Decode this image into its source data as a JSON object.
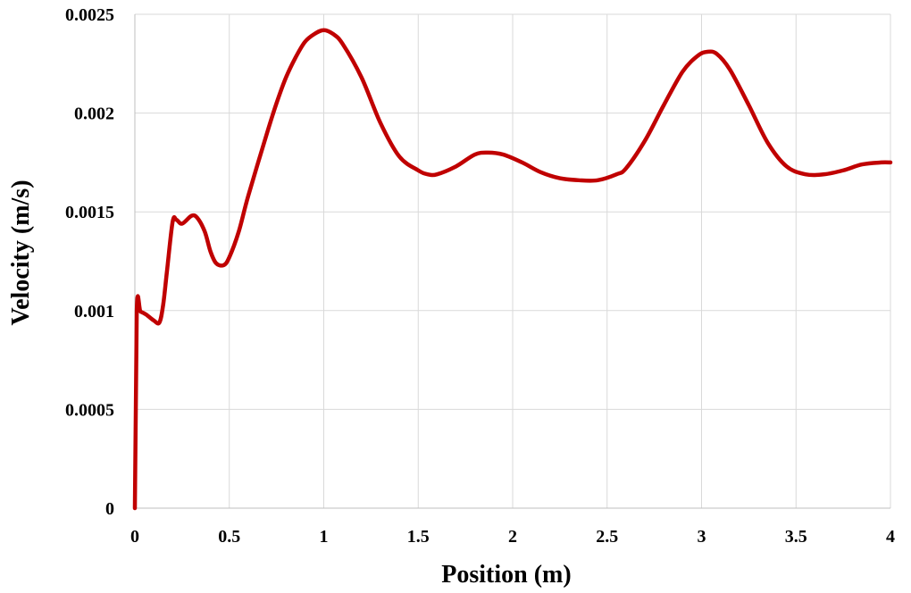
{
  "chart_data": {
    "type": "line",
    "xlabel": "Position (m)",
    "ylabel": "Velocity (m/s)",
    "xlim": [
      0,
      4
    ],
    "ylim": [
      0,
      0.0025
    ],
    "x_ticks": [
      "0",
      "0.5",
      "1",
      "1.5",
      "2",
      "2.5",
      "3",
      "3.5",
      "4"
    ],
    "y_ticks": [
      "0",
      "0.0005",
      "0.001",
      "0.0015",
      "0.002",
      "0.0025"
    ],
    "grid": true,
    "legend": "none",
    "series": [
      {
        "color": "#c00000",
        "points": [
          [
            0.0,
            0.0
          ],
          [
            0.01,
            0.001
          ],
          [
            0.03,
            0.000995
          ],
          [
            0.06,
            0.00098
          ],
          [
            0.1,
            0.00095
          ],
          [
            0.13,
            0.00094
          ],
          [
            0.15,
            0.00103
          ],
          [
            0.17,
            0.0012
          ],
          [
            0.2,
            0.00145
          ],
          [
            0.22,
            0.00146
          ],
          [
            0.25,
            0.00144
          ],
          [
            0.3,
            0.00148
          ],
          [
            0.33,
            0.00147
          ],
          [
            0.37,
            0.0014
          ],
          [
            0.4,
            0.0013
          ],
          [
            0.43,
            0.00124
          ],
          [
            0.47,
            0.00123
          ],
          [
            0.5,
            0.00127
          ],
          [
            0.55,
            0.0014
          ],
          [
            0.6,
            0.00158
          ],
          [
            0.7,
            0.0019
          ],
          [
            0.75,
            0.00205
          ],
          [
            0.8,
            0.00218
          ],
          [
            0.85,
            0.00228
          ],
          [
            0.9,
            0.00236
          ],
          [
            0.95,
            0.0024
          ],
          [
            1.0,
            0.00242
          ],
          [
            1.05,
            0.0024
          ],
          [
            1.1,
            0.00235
          ],
          [
            1.2,
            0.00218
          ],
          [
            1.3,
            0.00195
          ],
          [
            1.4,
            0.00178
          ],
          [
            1.5,
            0.00171
          ],
          [
            1.55,
            0.00169
          ],
          [
            1.6,
            0.00169
          ],
          [
            1.7,
            0.00173
          ],
          [
            1.8,
            0.00179
          ],
          [
            1.87,
            0.0018
          ],
          [
            1.95,
            0.00179
          ],
          [
            2.05,
            0.00175
          ],
          [
            2.15,
            0.0017
          ],
          [
            2.25,
            0.00167
          ],
          [
            2.35,
            0.00166
          ],
          [
            2.45,
            0.00166
          ],
          [
            2.55,
            0.00169
          ],
          [
            2.6,
            0.00172
          ],
          [
            2.7,
            0.00186
          ],
          [
            2.8,
            0.00204
          ],
          [
            2.9,
            0.00221
          ],
          [
            2.98,
            0.00229
          ],
          [
            3.03,
            0.00231
          ],
          [
            3.08,
            0.0023
          ],
          [
            3.15,
            0.00222
          ],
          [
            3.25,
            0.00204
          ],
          [
            3.35,
            0.00185
          ],
          [
            3.45,
            0.00173
          ],
          [
            3.55,
            0.00169
          ],
          [
            3.65,
            0.00169
          ],
          [
            3.75,
            0.00171
          ],
          [
            3.85,
            0.00174
          ],
          [
            3.95,
            0.00175
          ],
          [
            4.0,
            0.00175
          ]
        ]
      }
    ]
  }
}
